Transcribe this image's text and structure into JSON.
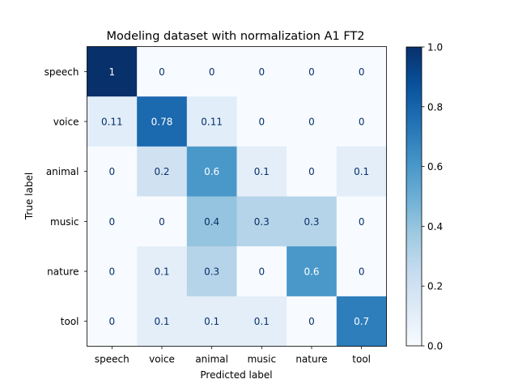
{
  "chart_data": {
    "type": "heatmap",
    "title": "Modeling dataset with normalization A1 FT2",
    "xlabel": "Predicted label",
    "ylabel": "True label",
    "x_categories": [
      "speech",
      "voice",
      "animal",
      "music",
      "nature",
      "tool"
    ],
    "y_categories": [
      "speech",
      "voice",
      "animal",
      "music",
      "nature",
      "tool"
    ],
    "values": [
      [
        1,
        0,
        0,
        0,
        0,
        0
      ],
      [
        0.11,
        0.78,
        0.11,
        0,
        0,
        0
      ],
      [
        0,
        0.2,
        0.6,
        0.1,
        0,
        0.1
      ],
      [
        0,
        0,
        0.4,
        0.3,
        0.3,
        0
      ],
      [
        0,
        0.1,
        0.3,
        0,
        0.6,
        0
      ],
      [
        0,
        0.1,
        0.1,
        0.1,
        0,
        0.7
      ]
    ],
    "value_labels": [
      [
        "1",
        "0",
        "0",
        "0",
        "0",
        "0"
      ],
      [
        "0.11",
        "0.78",
        "0.11",
        "0",
        "0",
        "0"
      ],
      [
        "0",
        "0.2",
        "0.6",
        "0.1",
        "0",
        "0.1"
      ],
      [
        "0",
        "0",
        "0.4",
        "0.3",
        "0.3",
        "0"
      ],
      [
        "0",
        "0.1",
        "0.3",
        "0",
        "0.6",
        "0"
      ],
      [
        "0",
        "0.1",
        "0.1",
        "0.1",
        "0",
        "0.7"
      ]
    ],
    "colorbar": {
      "range": [
        0,
        1
      ],
      "ticks": [
        0,
        0.2,
        0.4,
        0.6,
        0.8,
        1
      ],
      "tick_labels": [
        "0.0",
        "0.2",
        "0.4",
        "0.6",
        "0.8",
        "1.0"
      ],
      "colormap": "Blues"
    }
  }
}
